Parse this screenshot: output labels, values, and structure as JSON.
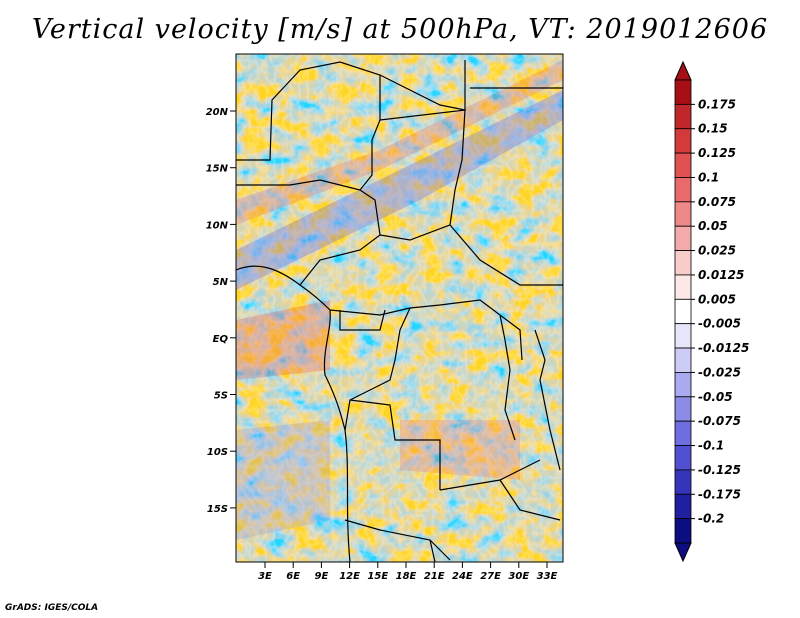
{
  "title": "Vertical velocity [m/s] at 500hPa, VT: 2019012606",
  "credit": "GrADS: IGES/COLA",
  "map": {
    "lat_ticks": [
      "20N",
      "15N",
      "10N",
      "5N",
      "EQ",
      "5S",
      "10S",
      "15S"
    ],
    "lon_ticks": [
      "3E",
      "6E",
      "9E",
      "12E",
      "15E",
      "18E",
      "21E",
      "24E",
      "27E",
      "30E",
      "33E"
    ]
  },
  "colorbar": {
    "levels": [
      "0.175",
      "0.15",
      "0.125",
      "0.1",
      "0.075",
      "0.05",
      "0.025",
      "0.0125",
      "0.005",
      "-0.005",
      "-0.0125",
      "-0.025",
      "-0.05",
      "-0.075",
      "-0.1",
      "-0.125",
      "-0.175",
      "-0.2"
    ],
    "colors": [
      "#a50f15",
      "#c0282c",
      "#d33b3b",
      "#e05252",
      "#e86a6a",
      "#ef8888",
      "#f5aaaa",
      "#f9cccc",
      "#fde8e8",
      "#ffffff",
      "#e6e6fb",
      "#ccccf6",
      "#aaaaf0",
      "#8c8ce8",
      "#6e6ee0",
      "#5050d0",
      "#3535bb",
      "#1f1fa0",
      "#0d0d82"
    ]
  }
}
